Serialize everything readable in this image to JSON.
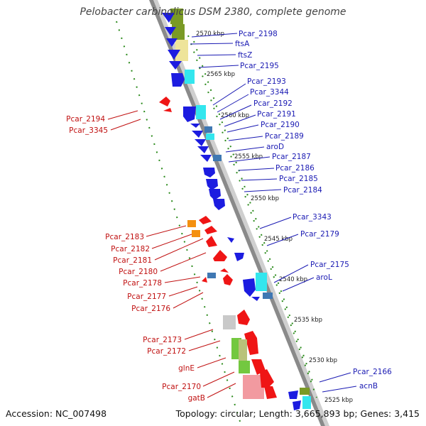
{
  "title": "Pelobacter carbinolicus DSM 2380, complete genome",
  "footer": {
    "accession": "Accession: NC_007498",
    "topology": "Topology: circular; Length: 3,665,893 bp; Genes: 3,415"
  },
  "colors": {
    "forward_label": "#1a1ab3",
    "reverse_label": "#c01010",
    "scale_green": "#2a8a1a",
    "backbone_gray": "#7a7a7a",
    "forward_gene": "#1c1ce0",
    "reverse_gene": "#ef1515",
    "cyan_block": "#33e6ee",
    "yellow_block": "#eee49a",
    "olive_block": "#7a9a25",
    "steel_block": "#3f78b3",
    "orange_block": "#f49010",
    "gray_block": "#c9c9c9",
    "green_block": "#73c840",
    "pink_block": "#f29aa0"
  },
  "kbp_ticks": [
    "2570 kbp",
    "2565 kbp",
    "2560 kbp",
    "2555 kbp",
    "2550 kbp",
    "2545 kbp",
    "2540 kbp",
    "2535 kbp",
    "2530 kbp",
    "2525 kbp"
  ],
  "forward_labels": [
    "Pcar_2198",
    "ftsA",
    "ftsZ",
    "Pcar_2195",
    "Pcar_2193",
    "Pcar_3344",
    "Pcar_2192",
    "Pcar_2191",
    "Pcar_2190",
    "Pcar_2189",
    "aroD",
    "Pcar_2187",
    "Pcar_2186",
    "Pcar_2185",
    "Pcar_2184",
    "Pcar_3343",
    "Pcar_2179",
    "Pcar_2175",
    "aroL",
    "Pcar_2166",
    "acnB"
  ],
  "reverse_labels": [
    "Pcar_2194",
    "Pcar_3345",
    "Pcar_2183",
    "Pcar_2182",
    "Pcar_2181",
    "Pcar_2180",
    "Pcar_2178",
    "Pcar_2177",
    "Pcar_2176",
    "Pcar_2173",
    "Pcar_2172",
    "glnE",
    "Pcar_2170",
    "gatB"
  ]
}
